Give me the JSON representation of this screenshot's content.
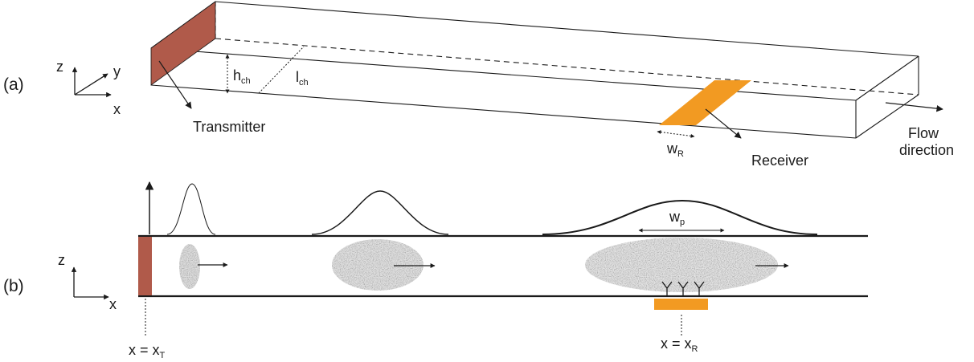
{
  "panel_a": {
    "tag": "(a)",
    "axes": {
      "z": "z",
      "y": "y",
      "x": "x"
    },
    "h": "h",
    "h_sub": "ch",
    "l": "l",
    "l_sub": "ch",
    "transmitter": "Transmitter",
    "w": "w",
    "w_sub": "R",
    "receiver": "Receiver",
    "flow_1": "Flow",
    "flow_2": "direction"
  },
  "panel_b": {
    "tag": "(b)",
    "axes": {
      "z": "z",
      "x": "x"
    },
    "wp": "w",
    "wp_sub": "p",
    "xt_main": "x = x",
    "xt_sub": "T",
    "xr_main": "x = x",
    "xr_sub": "R"
  },
  "colors": {
    "transmitter": "#b05a4a",
    "receiver": "#f29a22",
    "line": "#1a1a1a",
    "particles": "#8d8d8d"
  }
}
